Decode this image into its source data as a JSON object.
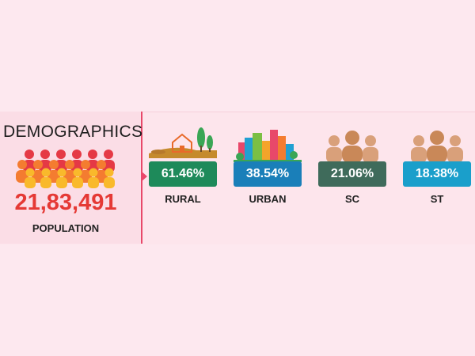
{
  "title": "DEMOGRAPHICS",
  "population": {
    "value": "21,83,491",
    "label": "POPULATION"
  },
  "stats": [
    {
      "value": "61.46%",
      "label": "RURAL",
      "color": "#1e8a5a",
      "icon": "rural-landscape-icon"
    },
    {
      "value": "38.54%",
      "label": "URBAN",
      "color": "#1a7fb9",
      "icon": "city-skyline-icon"
    },
    {
      "value": "21.06%",
      "label": "SC",
      "color": "#3f6b5b",
      "icon": "people-group-icon"
    },
    {
      "value": "18.38%",
      "label": "ST",
      "color": "#1a9fcb",
      "icon": "people-group-icon"
    }
  ],
  "colors": {
    "accent": "#e53935",
    "divider": "#e8486a",
    "background": "#fde8ef"
  }
}
